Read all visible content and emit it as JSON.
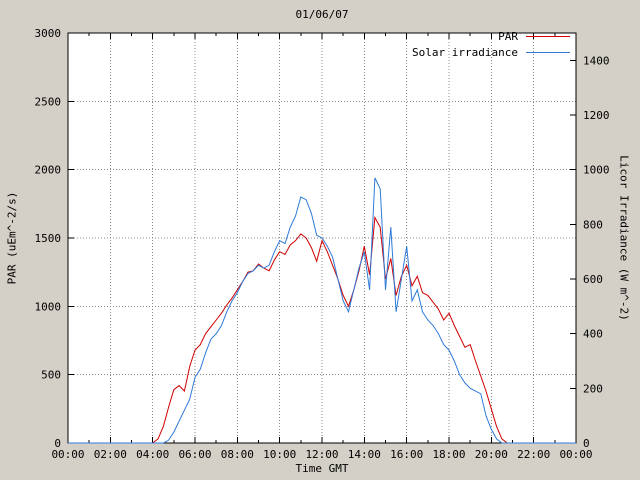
{
  "title": "01/06/07",
  "xlabel": "Time GMT",
  "ylabel_left": "PAR (uEm^-2/s)",
  "ylabel_right": "Licor Irradiance (W m^-2)",
  "colors": {
    "background": "#d4d0c8",
    "plot_background": "#ffffff",
    "grid": "#888888",
    "axis": "#000000",
    "par_line": "#d00000",
    "solar_line": "#2f7bd9"
  },
  "chart_data": {
    "type": "line",
    "title": "01/06/07",
    "xlabel": "Time GMT",
    "ylabel": "PAR (uEm^-2/s)",
    "y2label": "Licor Irradiance (W m^-2)",
    "x_unit": "hours GMT",
    "grid": true,
    "legend_position": "top-right",
    "xlim": [
      0,
      24
    ],
    "ylim_left": [
      0,
      3000
    ],
    "ylim_right": [
      0,
      1500
    ],
    "x_ticks": [
      0,
      2,
      4,
      6,
      8,
      10,
      12,
      14,
      16,
      18,
      20,
      22,
      24
    ],
    "x_tick_labels": [
      "00:00",
      "02:00",
      "04:00",
      "06:00",
      "08:00",
      "10:00",
      "12:00",
      "14:00",
      "16:00",
      "18:00",
      "20:00",
      "22:00",
      "00:00"
    ],
    "x_minor_ticks": [
      1,
      3,
      5,
      7,
      9,
      11,
      13,
      15,
      17,
      19,
      21,
      23
    ],
    "y_left_ticks": [
      0,
      500,
      1000,
      1500,
      2000,
      2500,
      3000
    ],
    "y_right_ticks": [
      0,
      200,
      400,
      600,
      800,
      1000,
      1200,
      1400
    ],
    "x": [
      0,
      1,
      2,
      3,
      3.75,
      4,
      4.25,
      4.5,
      4.75,
      5,
      5.25,
      5.5,
      5.75,
      6,
      6.25,
      6.5,
      6.75,
      7,
      7.25,
      7.5,
      7.75,
      8,
      8.25,
      8.5,
      8.75,
      9,
      9.25,
      9.5,
      9.75,
      10,
      10.25,
      10.5,
      10.75,
      11,
      11.25,
      11.5,
      11.75,
      12,
      12.25,
      12.5,
      12.75,
      13,
      13.25,
      13.5,
      13.75,
      14,
      14.25,
      14.5,
      14.75,
      15,
      15.25,
      15.5,
      15.75,
      16,
      16.25,
      16.5,
      16.75,
      17,
      17.25,
      17.5,
      17.75,
      18,
      18.25,
      18.5,
      18.75,
      19,
      19.25,
      19.5,
      19.75,
      20,
      20.25,
      20.5,
      20.75,
      21,
      22,
      23,
      24
    ],
    "series": [
      {
        "name": "PAR",
        "axis": "left",
        "color": "#d00000",
        "values": [
          0,
          0,
          0,
          0,
          0,
          0,
          30,
          120,
          260,
          390,
          420,
          380,
          560,
          680,
          720,
          800,
          850,
          900,
          950,
          1010,
          1060,
          1120,
          1180,
          1250,
          1260,
          1310,
          1280,
          1260,
          1340,
          1400,
          1380,
          1450,
          1480,
          1530,
          1500,
          1430,
          1330,
          1480,
          1400,
          1300,
          1200,
          1080,
          1000,
          1120,
          1260,
          1440,
          1230,
          1650,
          1580,
          1200,
          1350,
          1080,
          1220,
          1300,
          1150,
          1220,
          1100,
          1080,
          1030,
          980,
          900,
          950,
          860,
          780,
          700,
          720,
          600,
          490,
          380,
          250,
          120,
          30,
          0,
          0,
          0,
          0,
          0
        ]
      },
      {
        "name": "Solar irradiance",
        "axis": "right",
        "color": "#2f7bd9",
        "values": [
          0,
          0,
          0,
          0,
          0,
          0,
          0,
          0,
          10,
          40,
          80,
          120,
          160,
          240,
          270,
          330,
          380,
          400,
          430,
          480,
          520,
          550,
          590,
          620,
          630,
          650,
          640,
          650,
          700,
          740,
          730,
          790,
          830,
          900,
          890,
          840,
          760,
          750,
          720,
          680,
          600,
          520,
          480,
          560,
          640,
          700,
          560,
          970,
          930,
          560,
          790,
          480,
          600,
          720,
          520,
          560,
          480,
          450,
          430,
          400,
          360,
          340,
          300,
          250,
          220,
          200,
          190,
          180,
          100,
          50,
          15,
          0,
          0,
          0,
          0,
          0,
          0
        ]
      }
    ]
  }
}
